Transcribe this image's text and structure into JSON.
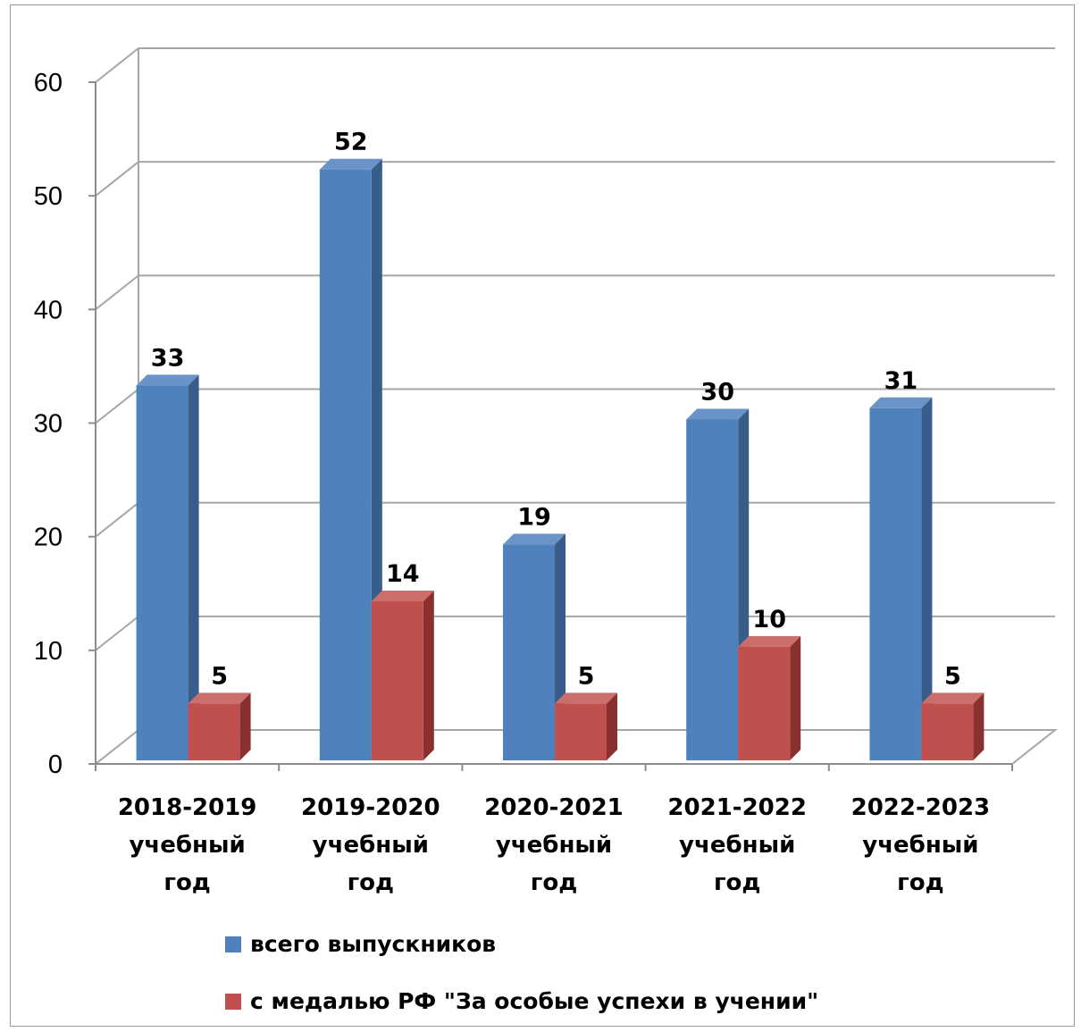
{
  "chart_data": {
    "type": "bar",
    "categories": [
      [
        "2018-2019",
        "учебный",
        "год"
      ],
      [
        "2019-2020",
        "учебный",
        "год"
      ],
      [
        "2020-2021",
        "учебный",
        "год"
      ],
      [
        "2021-2022",
        "учебный",
        "год"
      ],
      [
        "2022-2023",
        "учебный",
        "год"
      ]
    ],
    "series": [
      {
        "name": "всего выпускников",
        "values": [
          33,
          52,
          19,
          30,
          31
        ],
        "color": "#4F81BD"
      },
      {
        "name": "с медалью РФ \"За особые успехи в учении\"",
        "values": [
          5,
          14,
          5,
          10,
          5
        ],
        "color": "#C0504D"
      }
    ],
    "ylim": [
      0,
      60
    ],
    "yticks": [
      "0",
      "10",
      "20",
      "30",
      "40",
      "50",
      "60"
    ],
    "grid": true,
    "legend_placement": "bottom"
  }
}
